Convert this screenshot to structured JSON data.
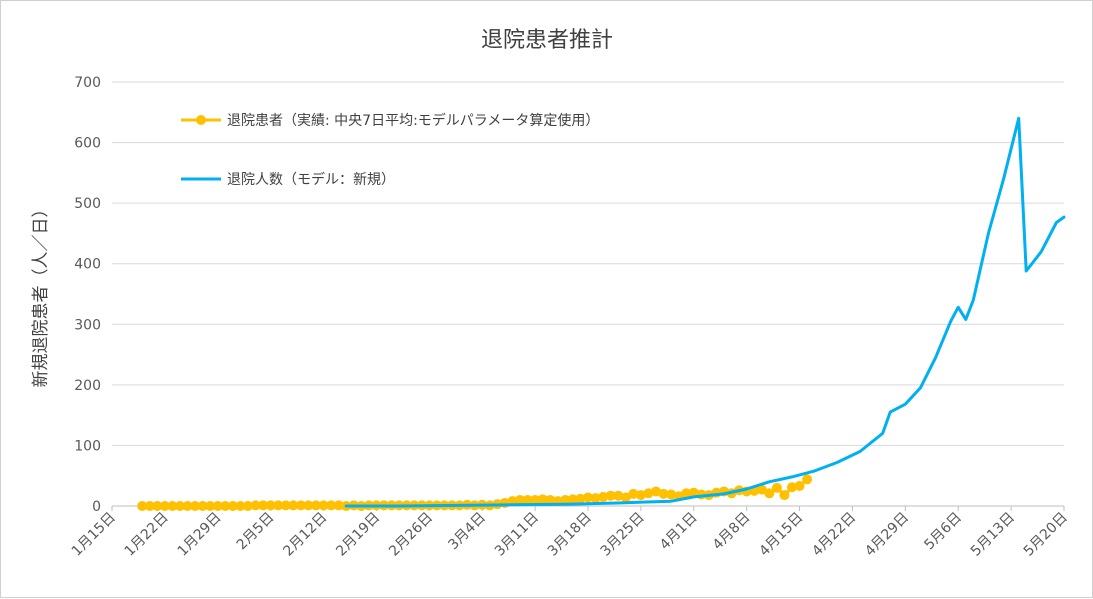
{
  "chart_data": {
    "type": "line",
    "title": "退院患者推計",
    "xlabel": "",
    "ylabel": "新規退院患者（人／日）",
    "ylim": [
      0,
      700
    ],
    "yticks": [
      0,
      100,
      200,
      300,
      400,
      500,
      600,
      700
    ],
    "xticks": [
      "1月15日",
      "1月22日",
      "1月29日",
      "2月5日",
      "2月12日",
      "2月19日",
      "2月26日",
      "3月4日",
      "3月11日",
      "3月18日",
      "3月25日",
      "4月1日",
      "4月8日",
      "4月15日",
      "4月22日",
      "4月29日",
      "5月6日",
      "5月13日",
      "5月20日"
    ],
    "x_start": "1月15日",
    "x_end": "5月20日",
    "grid": true,
    "legend_position": "top-left",
    "series": [
      {
        "name": "退院患者（実績: 中央7日平均:モデルパラメータ算定使用）",
        "color": "#FFC000",
        "marker": "circle",
        "x_dates": [
          "1月19日",
          "1月20日",
          "1月21日",
          "1月22日",
          "1月23日",
          "1月24日",
          "1月25日",
          "1月26日",
          "1月27日",
          "1月28日",
          "1月29日",
          "1月30日",
          "1月31日",
          "2月1日",
          "2月2日",
          "2月3日",
          "2月4日",
          "2月5日",
          "2月6日",
          "2月7日",
          "2月8日",
          "2月9日",
          "2月10日",
          "2月11日",
          "2月12日",
          "2月13日",
          "2月14日",
          "2月15日",
          "2月16日",
          "2月17日",
          "2月18日",
          "2月19日",
          "2月20日",
          "2月21日",
          "2月22日",
          "2月23日",
          "2月24日",
          "2月25日",
          "2月26日",
          "2月27日",
          "2月28日",
          "2月29日",
          "3月1日",
          "3月2日",
          "3月3日",
          "3月4日",
          "3月5日",
          "3月6日",
          "3月7日",
          "3月8日",
          "3月9日",
          "3月10日",
          "3月11日",
          "3月12日",
          "3月13日",
          "3月14日",
          "3月15日",
          "3月16日",
          "3月17日",
          "3月18日",
          "3月19日",
          "3月20日",
          "3月21日",
          "3月22日",
          "3月23日",
          "3月24日",
          "3月25日",
          "3月26日",
          "3月27日",
          "3月28日",
          "3月29日",
          "3月30日",
          "3月31日",
          "4月1日",
          "4月2日",
          "4月3日",
          "4月4日",
          "4月5日",
          "4月6日",
          "4月7日",
          "4月8日",
          "4月9日",
          "4月10日",
          "4月11日",
          "4月12日",
          "4月13日",
          "4月14日",
          "4月15日",
          "4月16日"
        ],
        "values": [
          0,
          0,
          0,
          0,
          0,
          0,
          0,
          0,
          0,
          0,
          0,
          0,
          0,
          0,
          0,
          1,
          1,
          1,
          1,
          1,
          1,
          1,
          1,
          1,
          1,
          1,
          1,
          0,
          1,
          0,
          1,
          1,
          1,
          1,
          1,
          1,
          1,
          1,
          1,
          1,
          1,
          1,
          1,
          2,
          1,
          2,
          1,
          3,
          5,
          8,
          10,
          10,
          10,
          11,
          10,
          8,
          10,
          11,
          12,
          14,
          13,
          15,
          17,
          17,
          14,
          20,
          18,
          21,
          24,
          20,
          19,
          16,
          21,
          22,
          19,
          18,
          22,
          24,
          21,
          26,
          24,
          25,
          27,
          21,
          30,
          18,
          31,
          33,
          44
        ]
      },
      {
        "name": "退院人数（モデル：新規）",
        "color": "#00B0F0",
        "marker": "none",
        "x_dates": [
          "2月15日",
          "2月22日",
          "3月1日",
          "3月8日",
          "3月15日",
          "3月22日",
          "3月29日",
          "4月1日",
          "4月5日",
          "4月8日",
          "4月11日",
          "4月14日",
          "4月17日",
          "4月20日",
          "4月23日",
          "4月26日",
          "4月27日",
          "4月29日",
          "5月1日",
          "5月3日",
          "5月5日",
          "5月6日",
          "5月7日",
          "5月8日",
          "5月10日",
          "5月12日",
          "5月14日",
          "5月15日",
          "5月17日",
          "5月19日",
          "5月20日"
        ],
        "values": [
          0,
          0,
          1,
          2,
          3,
          5,
          8,
          15,
          20,
          28,
          40,
          48,
          58,
          72,
          90,
          120,
          155,
          168,
          195,
          245,
          305,
          328,
          308,
          340,
          450,
          540,
          640,
          388,
          420,
          468,
          477
        ]
      }
    ]
  }
}
